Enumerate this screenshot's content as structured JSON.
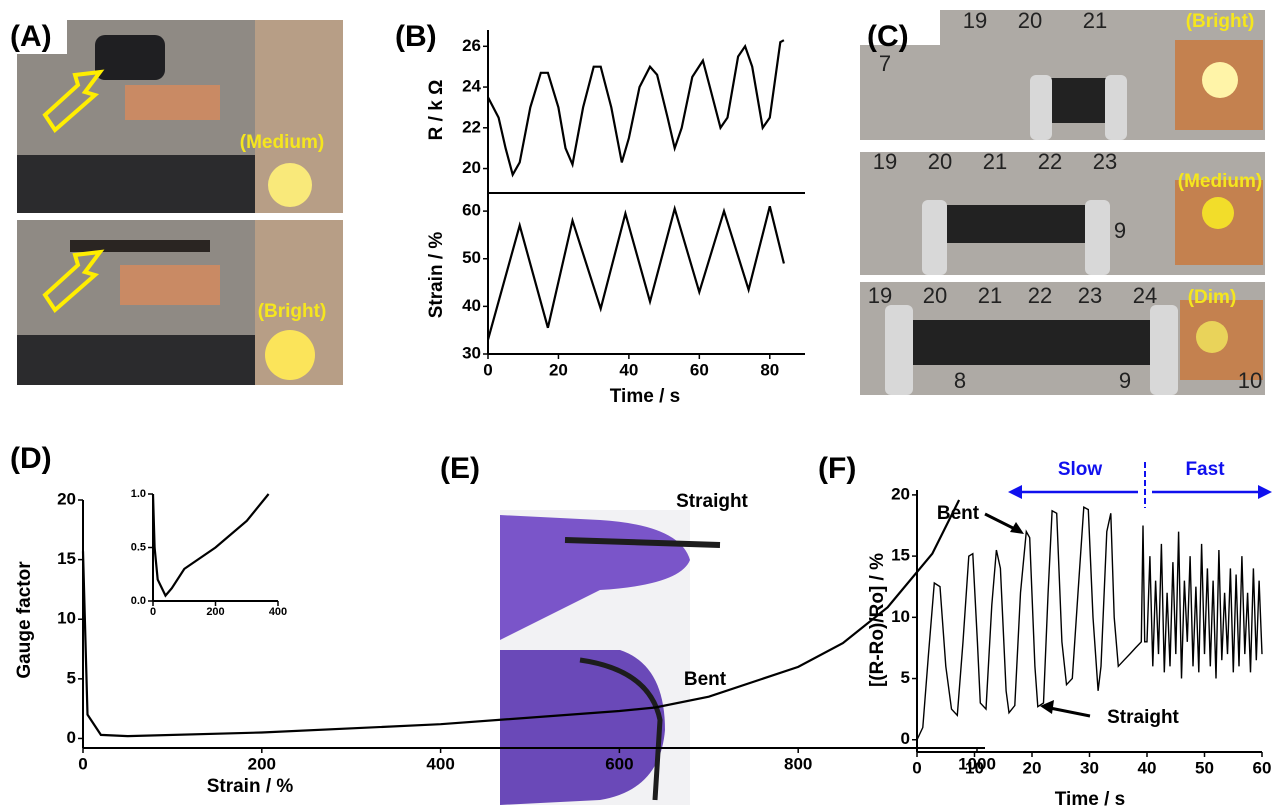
{
  "panel_labels": [
    "(A)",
    "(B)",
    "(C)",
    "(D)",
    "(E)",
    "(F)"
  ],
  "panel_a": {
    "top_led": "(Medium)",
    "bottom_led": "(Bright)"
  },
  "panel_c": {
    "top": {
      "ruler": [
        "19",
        "20",
        "21",
        "7"
      ],
      "led": "(Bright)"
    },
    "middle": {
      "ruler": [
        "19",
        "20",
        "21",
        "22",
        "23",
        "9"
      ],
      "led": "(Medium)"
    },
    "bottom": {
      "ruler": [
        "19",
        "20",
        "21",
        "22",
        "23",
        "24",
        "8",
        "9",
        "10"
      ],
      "led": "(Dim)"
    }
  },
  "panel_e": {
    "top": "Straight",
    "bottom": "Bent"
  },
  "chart_data": [
    {
      "type": "line",
      "ylabel": "R / k Ω",
      "color": "#000000",
      "x": [
        0,
        3,
        5,
        7,
        9,
        12,
        15,
        17,
        20,
        22,
        24,
        27,
        30,
        32,
        35,
        38,
        40,
        43,
        46,
        48,
        51,
        53,
        55,
        58,
        61,
        63,
        66,
        68,
        71,
        73,
        75,
        78,
        80,
        83,
        84
      ],
      "values": [
        23.5,
        22.5,
        21,
        19.7,
        20.3,
        23,
        24.7,
        24.7,
        23,
        21,
        20.2,
        23,
        25,
        25,
        23,
        20.3,
        21.5,
        24,
        25,
        24.6,
        22.5,
        21,
        22,
        24.5,
        25.3,
        24,
        22,
        22.5,
        25.5,
        26,
        25,
        22,
        22.5,
        26.2,
        26.3
      ],
      "xlim": [
        0,
        90
      ],
      "ylim": [
        18.8,
        26.8
      ],
      "yticks": [
        20,
        22,
        24,
        26
      ]
    },
    {
      "type": "line",
      "ylabel": "Strain / %",
      "xlabel": "Time / s",
      "color": "#000000",
      "x": [
        0,
        9,
        17,
        24,
        32,
        39,
        46,
        53,
        60,
        67,
        74,
        80,
        84
      ],
      "values": [
        33,
        57,
        35.5,
        58,
        39.5,
        59.5,
        41,
        60.5,
        43,
        60,
        43.5,
        61,
        49
      ],
      "xlim": [
        0,
        90
      ],
      "ylim": [
        30,
        63.8
      ],
      "xticks": [
        0,
        20,
        40,
        60,
        80
      ],
      "yticks": [
        30,
        40,
        50,
        60
      ]
    },
    {
      "type": "line",
      "xlabel": "Strain / %",
      "ylabel": "Gauge factor",
      "color": "#000000",
      "x": [
        0,
        5,
        20,
        50,
        200,
        400,
        600,
        640,
        700,
        800,
        850,
        900,
        950,
        980
      ],
      "values": [
        15.7,
        2,
        0.3,
        0.2,
        0.5,
        1.2,
        2.3,
        2.6,
        3.5,
        6,
        8,
        11,
        15.5,
        20
      ],
      "xlim": [
        0,
        1000
      ],
      "ylim": [
        -0.8,
        20
      ],
      "xticks": [
        0,
        200,
        400,
        600,
        800,
        1000
      ],
      "yticks": [
        0,
        5,
        10,
        15,
        20
      ]
    },
    {
      "type": "line",
      "color": "#000000",
      "x": [
        0,
        5,
        15,
        40,
        60,
        100,
        200,
        300,
        370
      ],
      "values": [
        1.0,
        0.5,
        0.2,
        0.05,
        0.12,
        0.3,
        0.5,
        0.75,
        1.0
      ],
      "xlim": [
        0,
        400
      ],
      "ylim": [
        0,
        1.0
      ],
      "xticks": [
        0,
        200,
        400
      ],
      "yticks": [
        {
          "value": 0,
          "label": "0.0"
        },
        {
          "value": 0.5,
          "label": "0.5"
        },
        {
          "value": 1,
          "label": "1.0"
        }
      ]
    },
    {
      "type": "line",
      "xlabel": "Time / s",
      "ylabel": "[(R-Ro)/Ro] / %",
      "color": "#000000",
      "annotations": [
        "Bent",
        "Straight",
        "Slow",
        "Fast"
      ],
      "x": [
        0,
        1,
        2,
        3,
        4,
        5,
        6,
        7,
        8,
        9,
        9.7,
        10.5,
        11,
        12,
        13,
        13.8,
        14.5,
        15.5,
        16,
        17,
        18,
        19,
        19.6,
        20.5,
        21,
        22,
        22.8,
        23.5,
        24.3,
        25.2,
        26,
        27,
        28,
        29,
        29.8,
        30.6,
        31.5,
        32,
        33,
        33.7,
        34.3,
        35,
        36,
        37,
        38,
        39,
        39.3,
        39.6,
        40,
        40.5,
        41,
        41.5,
        42,
        42.5,
        43,
        43.5,
        44,
        44.5,
        45,
        45.5,
        46,
        46.5,
        47,
        47.5,
        48,
        48.5,
        49,
        49.5,
        50,
        50.5,
        51,
        51.5,
        52,
        52.5,
        53,
        53.5,
        54,
        54.5,
        55,
        55.5,
        56,
        56.5,
        57,
        57.5,
        58,
        58.5,
        59,
        59.5,
        60
      ],
      "values": [
        0,
        1,
        7,
        12.8,
        12.5,
        6,
        2.5,
        2,
        8,
        15,
        15.2,
        8,
        3,
        2.5,
        11,
        15.5,
        14,
        4,
        2.2,
        2.8,
        12,
        17,
        16.5,
        6,
        2.7,
        3,
        12,
        18.7,
        18.5,
        8,
        4.5,
        5,
        12,
        19,
        18.8,
        10,
        4,
        6,
        17,
        18.5,
        10,
        6,
        6.5,
        7,
        7.5,
        8,
        17.5,
        8,
        8,
        15,
        6,
        13,
        7,
        16,
        5.5,
        12,
        6,
        14.5,
        7,
        17,
        5,
        13,
        8,
        15,
        6,
        12.5,
        5.5,
        16,
        7,
        14,
        6,
        13,
        5,
        15.5,
        6.5,
        12,
        7,
        14,
        5.5,
        13.5,
        6,
        15,
        7,
        12,
        5.5,
        14,
        6.5,
        13,
        7
      ],
      "xlim": [
        0,
        60
      ],
      "ylim": [
        -1,
        20.4
      ],
      "xticks": [
        0,
        10,
        20,
        30,
        40,
        50,
        60
      ],
      "yticks": [
        0,
        5,
        10,
        15,
        20
      ]
    }
  ]
}
